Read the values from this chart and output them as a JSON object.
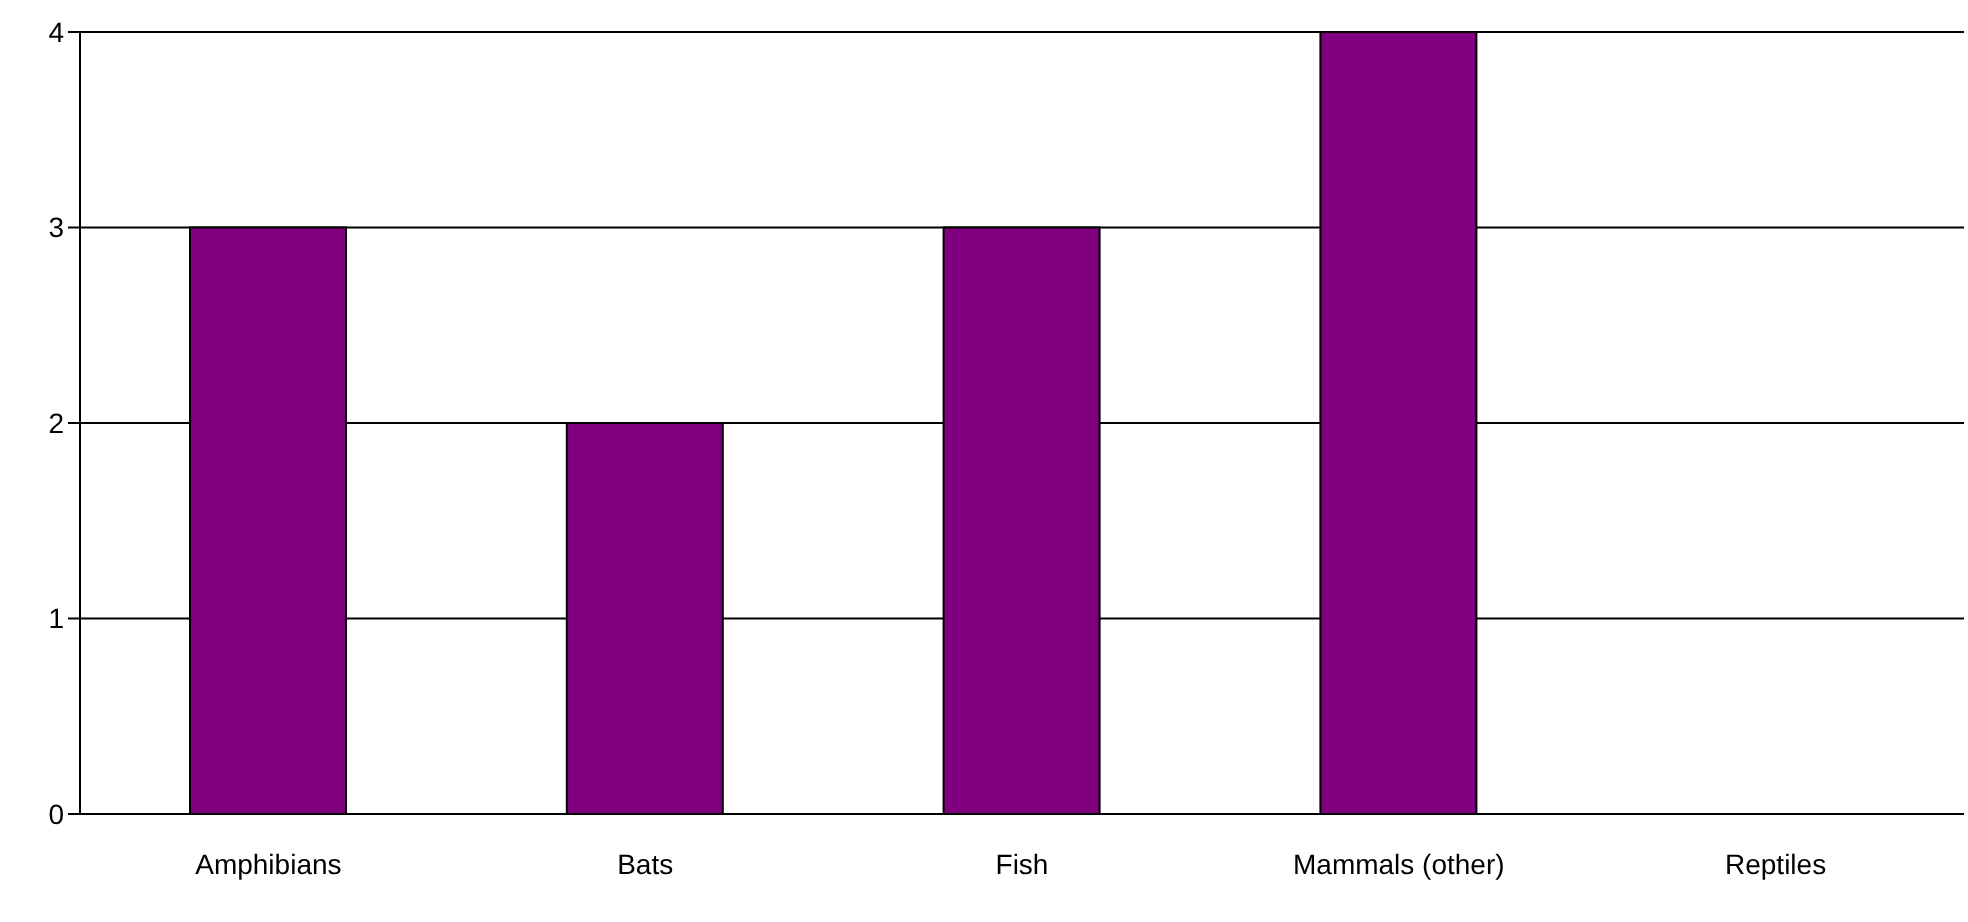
{
  "chart_data": {
    "type": "bar",
    "categories": [
      "Amphibians",
      "Bats",
      "Fish",
      "Mammals (other)",
      "Reptiles"
    ],
    "values": [
      3,
      2,
      3,
      4,
      0
    ],
    "color": "#800080",
    "ylim": [
      0,
      4
    ],
    "yticks": [
      0,
      1,
      2,
      3,
      4
    ],
    "grid": "y"
  }
}
